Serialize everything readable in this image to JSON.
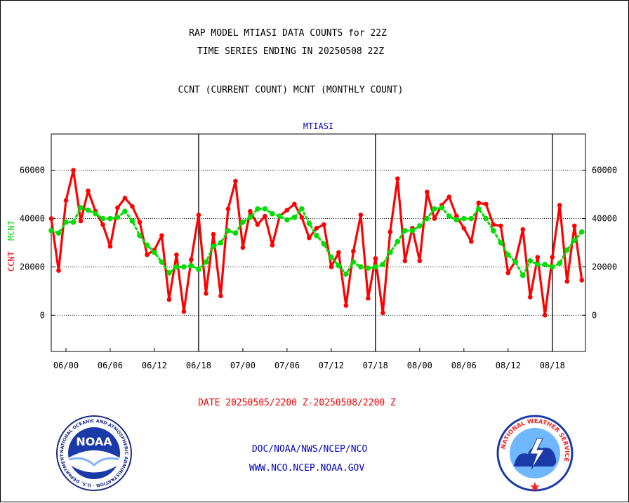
{
  "header": {
    "title_line1": "RAP MODEL MTIASI DATA COUNTS for 22Z",
    "title_line2": "TIME SERIES ENDING IN 20250508 22Z",
    "subtitle": "CCNT (CURRENT COUNT) MCNT (MONTHLY COUNT)",
    "panel_label": "MTIASI"
  },
  "footer": {
    "date_range": "DATE 20250505/2200 Z-20250508/2200 Z",
    "org_line": "DOC/NOAA/NWS/NCEP/NCO",
    "url_line": "WWW.NCO.NCEP.NOAA.GOV",
    "noaa_logo_text": "NOAA",
    "noaa_ring_text": "NATIONAL OCEANIC AND ATMOSPHERIC ADMINISTRATION · U.S. DEPARTMENT OF COMMERCE",
    "nws_ring_text": "NATIONAL WEATHER SERVICE"
  },
  "colors": {
    "ccnt": "#ff0000",
    "mcnt": "#00dd00",
    "axis_text": "#000000",
    "footer_red": "#ff0000",
    "footer_blue": "#0000cc",
    "panel_label": "#0000cc"
  },
  "chart_data": {
    "type": "line",
    "ylabel_ccnt": "CCNT",
    "ylabel_mcnt": "MCNT",
    "ylim": [
      -15000,
      75000
    ],
    "yticks": [
      0,
      20000,
      40000,
      60000
    ],
    "ytick_labels": [
      "0",
      "20000",
      "40000",
      "60000"
    ],
    "x_tick_labels": [
      "06/00",
      "06/06",
      "06/12",
      "06/18",
      "07/00",
      "07/06",
      "07/12",
      "07/18",
      "08/00",
      "08/06",
      "08/12",
      "08/18"
    ],
    "x_tick_hours": [
      0,
      6,
      12,
      18,
      24,
      30,
      36,
      42,
      48,
      54,
      60,
      66
    ],
    "x_range_hours": [
      -2,
      70.5
    ],
    "day_boundaries_hours": [
      18,
      42,
      66
    ],
    "grid": "horizontal dotted at y ticks",
    "series": [
      {
        "name": "CCNT",
        "key": "ccnt",
        "style": "line-markers",
        "x_start_hour": -2,
        "x_step_hours": 1,
        "values": [
          40000,
          18500,
          47500,
          60000,
          39000,
          51500,
          43000,
          37500,
          28500,
          44500,
          48500,
          45000,
          38500,
          25000,
          27000,
          33000,
          6500,
          25000,
          1500,
          23000,
          41500,
          9000,
          33500,
          8000,
          44000,
          55500,
          28000,
          43000,
          37500,
          41000,
          29000,
          41000,
          43500,
          46000,
          40500,
          32000,
          36000,
          37500,
          20000,
          26000,
          4000,
          26500,
          41500,
          7000,
          23500,
          1000,
          34500,
          56500,
          22500,
          36000,
          22500,
          51000,
          40000,
          45500,
          49000,
          41000,
          36000,
          30500,
          46500,
          46000,
          37500,
          37000,
          17500,
          22500,
          35500,
          7500,
          24000,
          0,
          24000,
          45500,
          14000,
          37000,
          14500
        ]
      },
      {
        "name": "MCNT",
        "key": "mcnt",
        "style": "dotted-markers",
        "x_start_hour": -2,
        "x_step_hours": 1,
        "values": [
          35000,
          34000,
          38500,
          38500,
          44500,
          43500,
          42000,
          40000,
          40000,
          40500,
          43000,
          39000,
          33000,
          29000,
          26000,
          22000,
          17500,
          20000,
          20000,
          20500,
          19000,
          22000,
          28500,
          30000,
          35000,
          34000,
          38500,
          40500,
          44000,
          44000,
          42000,
          41000,
          39500,
          40500,
          44000,
          38000,
          33000,
          29500,
          24000,
          20500,
          17000,
          22000,
          20000,
          19500,
          20000,
          21000,
          26000,
          30500,
          35000,
          35000,
          37000,
          40000,
          44000,
          44500,
          41000,
          39500,
          40000,
          40000,
          44000,
          40000,
          35000,
          30000,
          25000,
          22000,
          16500,
          22500,
          21000,
          21000,
          20000,
          21500,
          27000,
          31000,
          34500
        ]
      }
    ]
  }
}
